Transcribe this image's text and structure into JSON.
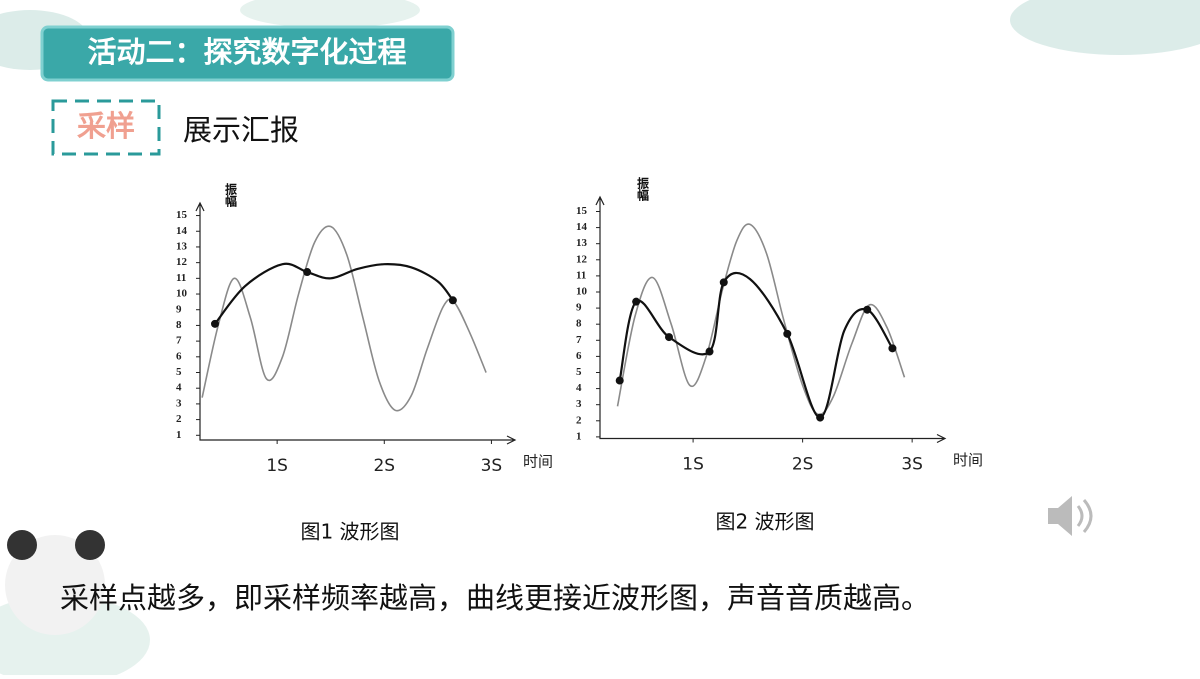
{
  "header": {
    "title": "活动二：探究数字化过程",
    "tag": "采样",
    "subtitle": "展示汇报"
  },
  "conclusion": "采样点越多，即采样频率越高，曲线更接近波形图，声音音质越高。",
  "chart_data": [
    {
      "type": "line",
      "title": "图1  波形图",
      "y_label": "振幅",
      "x_label": "时间",
      "xlim": [
        0.28,
        3.22
      ],
      "ylim": [
        0.7,
        15.8
      ],
      "xticks": [
        {
          "value": 1,
          "label": "1S"
        },
        {
          "value": 2,
          "label": "2S"
        },
        {
          "value": 3,
          "label": "3S"
        }
      ],
      "yticks": [
        1,
        2,
        3,
        4,
        5,
        6,
        7,
        8,
        9,
        10,
        11,
        12,
        13,
        14,
        15
      ],
      "series": [
        {
          "style": "line",
          "color": "#8a8a8a",
          "x": [
            0.3,
            0.45,
            0.6,
            0.75,
            0.9,
            1.05,
            1.2,
            1.35,
            1.5,
            1.65,
            1.8,
            1.95,
            2.1,
            2.25,
            2.4,
            2.55,
            2.65,
            2.8,
            2.95
          ],
          "values": [
            3.4,
            8,
            11,
            8.5,
            4.6,
            6,
            10,
            13.3,
            14.3,
            12.5,
            8.5,
            4.5,
            2.6,
            3.5,
            6.5,
            9.2,
            9.5,
            7.5,
            5.0
          ]
        },
        {
          "style": "line",
          "color": "#111111",
          "x": [
            0.42,
            0.7,
            1.05,
            1.28,
            1.5,
            1.75,
            2.0,
            2.25,
            2.5,
            2.64
          ],
          "values": [
            8.1,
            10.5,
            11.9,
            11.4,
            11.0,
            11.6,
            11.9,
            11.7,
            10.8,
            9.6
          ]
        },
        {
          "style": "points",
          "color": "#111111",
          "x": [
            0.42,
            1.28,
            2.64
          ],
          "values": [
            8.1,
            11.4,
            9.6
          ]
        }
      ]
    },
    {
      "type": "line",
      "title": "图2  波形图",
      "y_label": "振幅",
      "x_label": "时间",
      "xlim": [
        0.15,
        3.3
      ],
      "ylim": [
        0.9,
        15.9
      ],
      "xticks": [
        {
          "value": 1,
          "label": "1S"
        },
        {
          "value": 2,
          "label": "2S"
        },
        {
          "value": 3,
          "label": "3S"
        }
      ],
      "yticks": [
        1,
        2,
        3,
        4,
        5,
        6,
        7,
        8,
        9,
        10,
        11,
        12,
        13,
        14,
        15
      ],
      "series": [
        {
          "style": "line",
          "color": "#8a8a8a",
          "x": [
            0.31,
            0.47,
            0.63,
            0.8,
            0.97,
            1.12,
            1.27,
            1.4,
            1.52,
            1.67,
            1.83,
            2.0,
            2.14,
            2.28,
            2.45,
            2.61,
            2.77,
            2.93
          ],
          "values": [
            2.9,
            8.5,
            10.9,
            8,
            4.2,
            6,
            10.2,
            13.2,
            14.2,
            12.4,
            8.2,
            4.2,
            2.4,
            3.5,
            6.8,
            9.2,
            7.8,
            4.7
          ]
        },
        {
          "style": "line",
          "color": "#111111",
          "x": [
            0.33,
            0.48,
            0.78,
            1.15,
            1.28,
            1.52,
            1.86,
            2.16,
            2.38,
            2.59,
            2.82
          ],
          "values": [
            4.5,
            9.4,
            7.2,
            6.3,
            10.6,
            10.8,
            7.4,
            2.2,
            7.6,
            8.9,
            6.5
          ]
        },
        {
          "style": "points",
          "color": "#111111",
          "x": [
            0.33,
            0.48,
            0.78,
            1.15,
            1.28,
            1.86,
            2.16,
            2.59,
            2.82
          ],
          "values": [
            4.5,
            9.4,
            7.2,
            6.3,
            10.6,
            7.4,
            2.2,
            8.9,
            6.5
          ]
        }
      ]
    }
  ]
}
